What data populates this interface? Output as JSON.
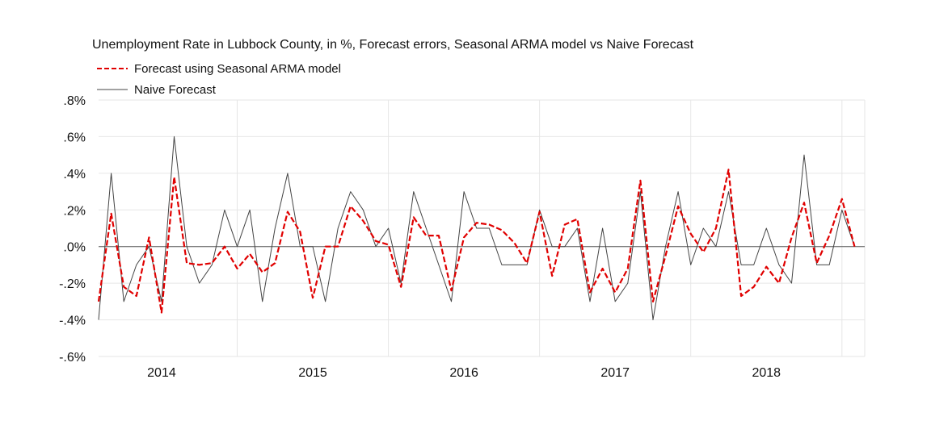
{
  "chart_data": {
    "type": "line",
    "title": "Unemployment Rate in Lubbock County, in %, Forecast errors, Seasonal ARMA model vs Naive Forecast",
    "xlabel": "",
    "ylabel": "",
    "x_start": "2013-08",
    "x_ticks": [
      "2014",
      "2015",
      "2016",
      "2017",
      "2018"
    ],
    "y_ticks": [
      ".8%",
      ".6%",
      ".4%",
      ".2%",
      ".0%",
      "-.2%",
      "-.4%",
      "-.6%"
    ],
    "ylim": [
      -0.6,
      0.8
    ],
    "grid": true,
    "legend_position": "top-left",
    "series": [
      {
        "name": "Forecast using Seasonal ARMA model",
        "color": "#e00000",
        "style": "dashed",
        "values": [
          -0.3,
          0.18,
          -0.22,
          -0.27,
          0.05,
          -0.36,
          0.38,
          -0.09,
          -0.1,
          -0.09,
          0.0,
          -0.12,
          -0.04,
          -0.14,
          -0.09,
          0.19,
          0.08,
          -0.28,
          0.0,
          0.0,
          0.22,
          0.14,
          0.03,
          0.01,
          -0.22,
          0.16,
          0.06,
          0.06,
          -0.24,
          0.05,
          0.13,
          0.12,
          0.09,
          0.02,
          -0.09,
          0.19,
          -0.16,
          0.12,
          0.15,
          -0.25,
          -0.12,
          -0.25,
          -0.12,
          0.36,
          -0.3,
          -0.05,
          0.22,
          0.07,
          -0.03,
          0.1,
          0.42,
          -0.27,
          -0.22,
          -0.11,
          -0.2,
          0.05,
          0.24,
          -0.09,
          0.06,
          0.26,
          0.0
        ]
      },
      {
        "name": "Naive Forecast",
        "color": "#444444",
        "style": "solid",
        "values": [
          -0.4,
          0.4,
          -0.3,
          -0.1,
          0.0,
          -0.3,
          0.6,
          0.0,
          -0.2,
          -0.1,
          0.2,
          0.0,
          0.2,
          -0.3,
          0.1,
          0.4,
          0.0,
          0.0,
          -0.3,
          0.1,
          0.3,
          0.2,
          0.0,
          0.1,
          -0.2,
          0.3,
          0.1,
          -0.1,
          -0.3,
          0.3,
          0.1,
          0.1,
          -0.1,
          -0.1,
          -0.1,
          0.2,
          0.0,
          0.0,
          0.1,
          -0.3,
          0.1,
          -0.3,
          -0.2,
          0.3,
          -0.4,
          0.0,
          0.3,
          -0.1,
          0.1,
          0.0,
          0.3,
          -0.1,
          -0.1,
          0.1,
          -0.1,
          -0.2,
          0.5,
          -0.1,
          -0.1,
          0.2,
          0.0
        ]
      }
    ]
  }
}
